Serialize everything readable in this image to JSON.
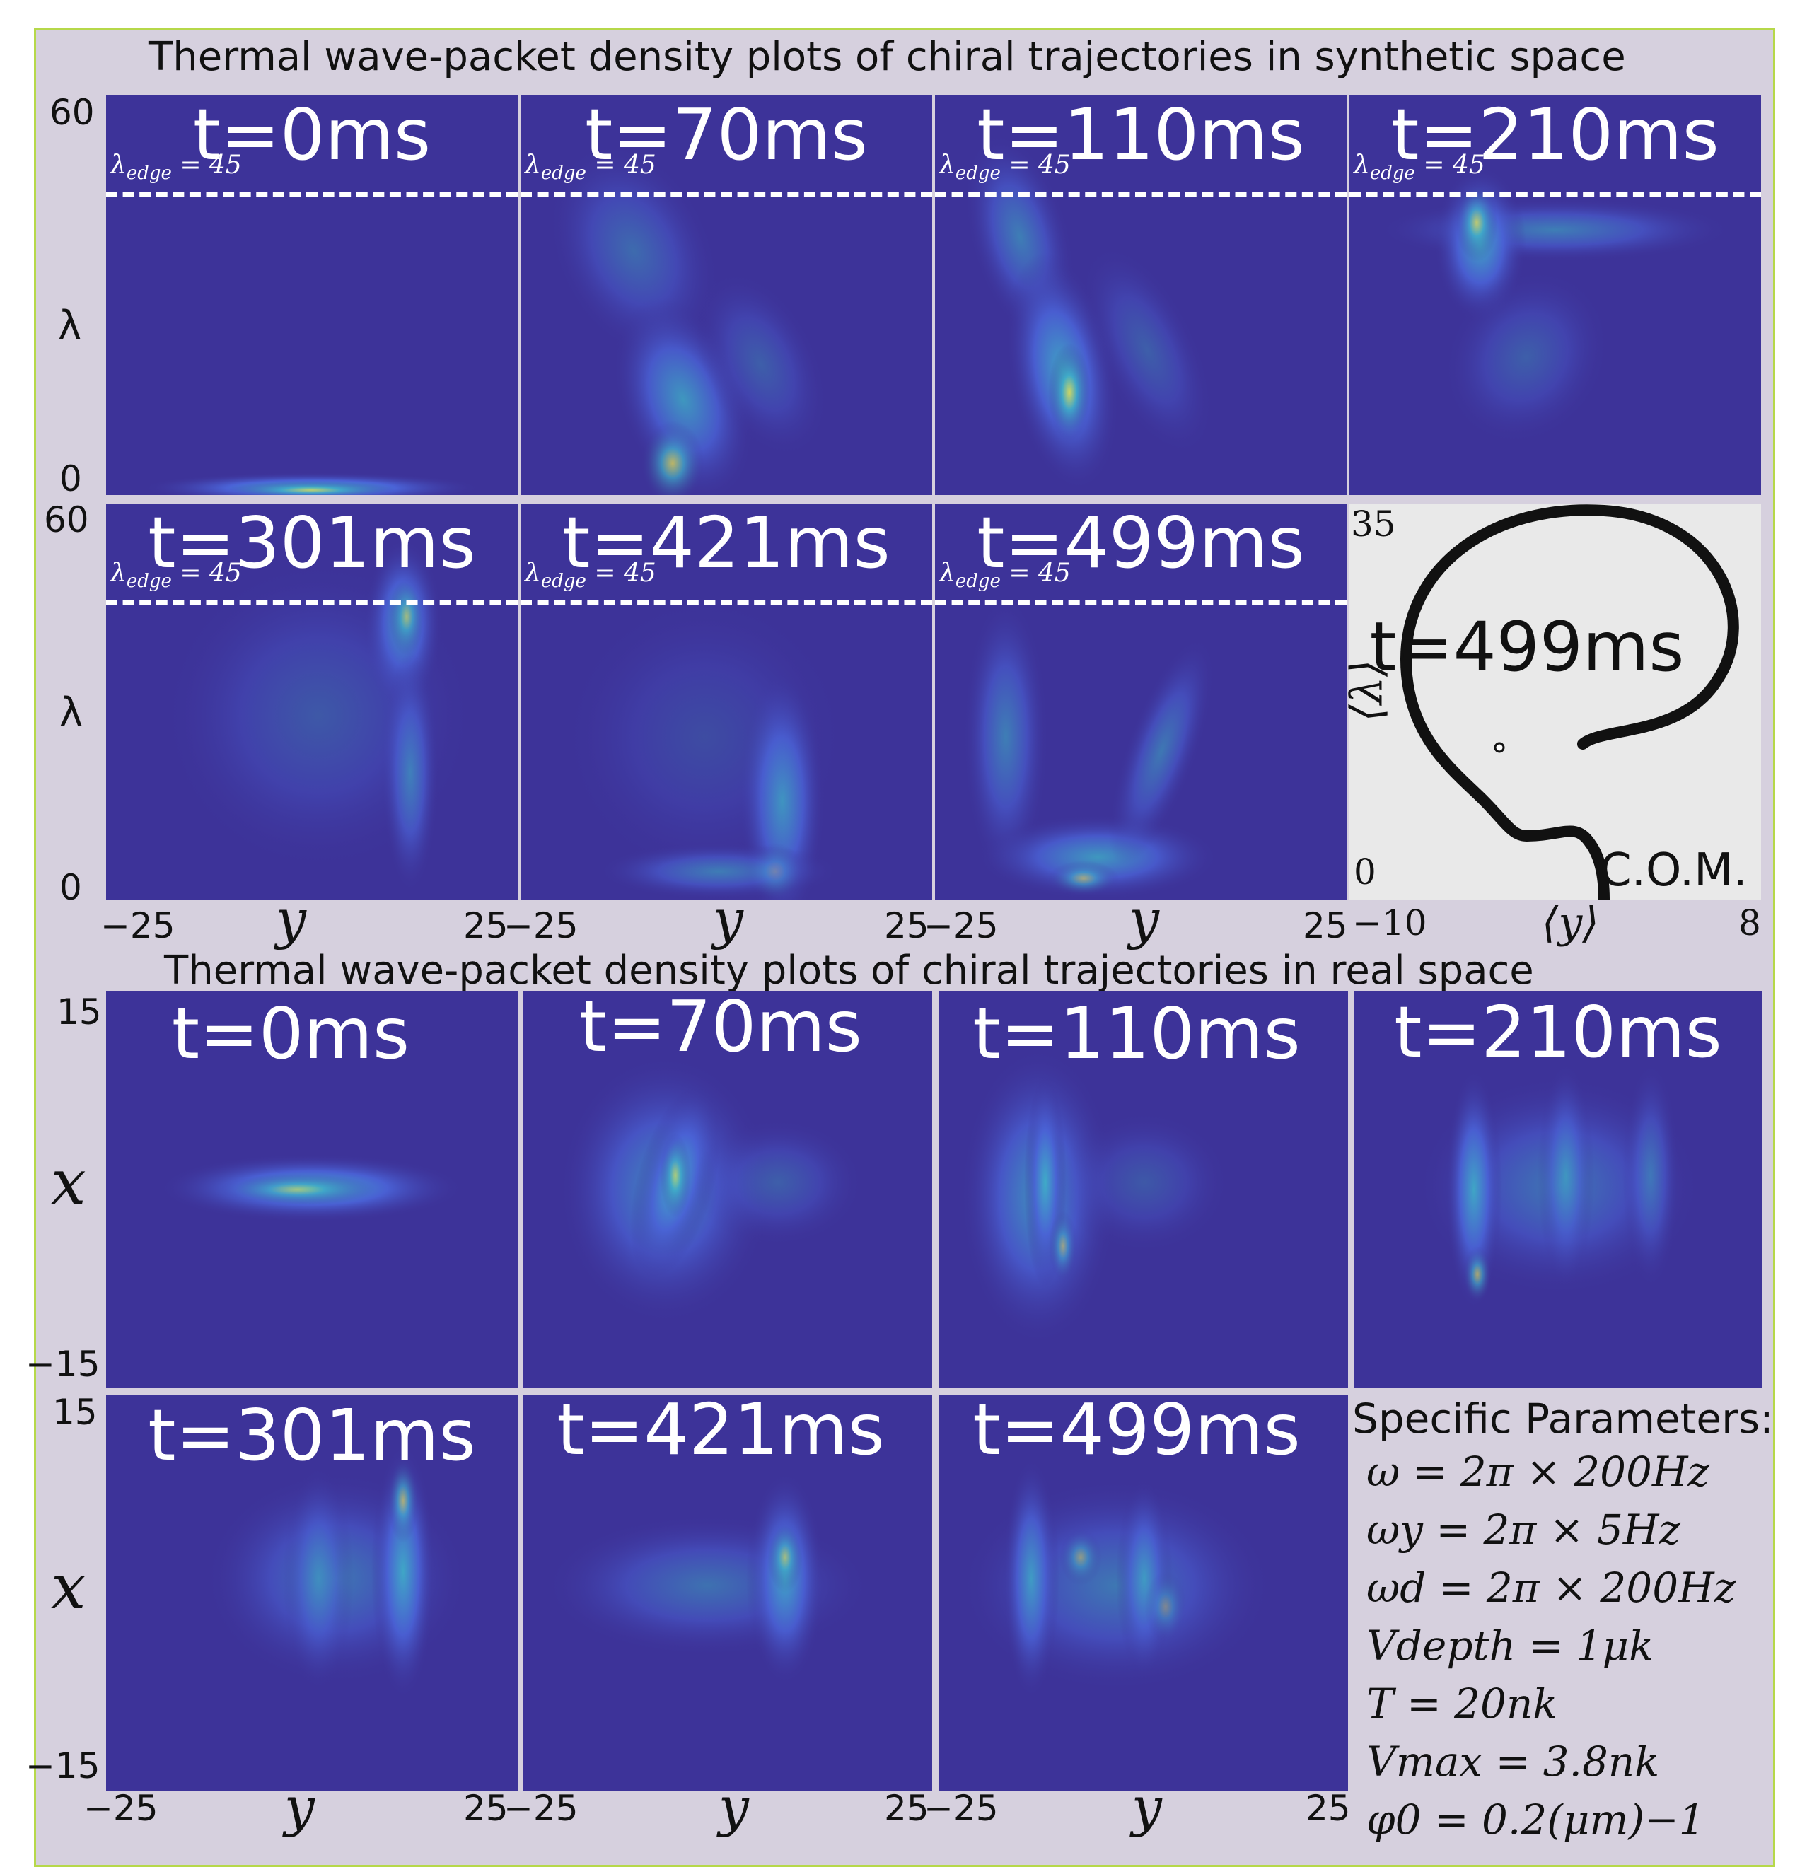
{
  "synthetic_title": "Thermal wave-packet density plots of chiral trajectories in synthetic space",
  "real_title": "Thermal wave-packet density plots of chiral trajectories in real space",
  "edge_label": "λ",
  "edge_sub": "edge",
  "edge_value": "= 45",
  "synthetic_panels": [
    {
      "time": "t=0ms"
    },
    {
      "time": "t=70ms"
    },
    {
      "time": "t=110ms"
    },
    {
      "time": "t=210ms"
    },
    {
      "time": "t=301ms"
    },
    {
      "time": "t=421ms"
    },
    {
      "time": "t=499ms"
    }
  ],
  "real_panels": [
    {
      "time": "t=0ms"
    },
    {
      "time": "t=70ms"
    },
    {
      "time": "t=110ms"
    },
    {
      "time": "t=210ms"
    },
    {
      "time": "t=301ms"
    },
    {
      "time": "t=421ms"
    },
    {
      "time": "t=499ms"
    }
  ],
  "synthetic_axes": {
    "y_top": "60",
    "y_bottom": "0",
    "y_label": "λ",
    "x_left": "−25",
    "x_right": "25",
    "x_label": "y"
  },
  "real_axes": {
    "y_top": "15",
    "y_bottom": "−15",
    "y_label": "x",
    "x_left": "−25",
    "x_right": "25",
    "x_label": "y"
  },
  "com_panel": {
    "time": "t=499ms",
    "label": "C.O.M.",
    "y_top": "35",
    "y_bottom": "0",
    "y_label": "⟨λ⟩",
    "x_left": "−10",
    "x_right": "8",
    "x_label": "⟨y⟩"
  },
  "parameters": {
    "heading": "Specific Parameters:",
    "items": [
      "ω = 2π × 200Hz",
      "ωy = 2π × 5Hz",
      "ωd = 2π × 200Hz",
      "Vdepth = 1μk",
      "T = 20nk",
      "Vmax = 3.8nk",
      "φ0 = 0.2(μm)−1"
    ]
  },
  "colors": {
    "panel_bg": "#3d3399",
    "density_low": "#4a62d6",
    "density_mid": "#3fb0c8",
    "density_high": "#f2e84a",
    "frame_bg": "#d6d0de",
    "frame_border": "#b6d84a"
  }
}
